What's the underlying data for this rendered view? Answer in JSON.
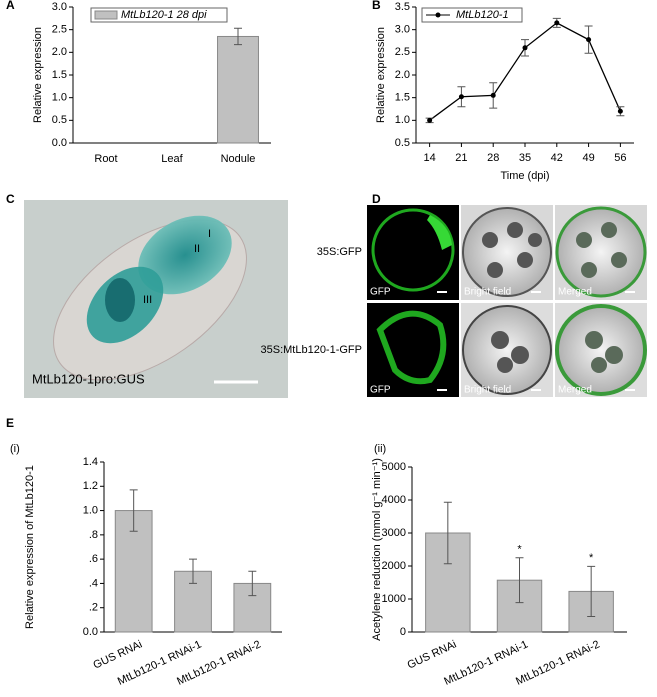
{
  "chart_data": [
    {
      "type": "bar",
      "panel": "A",
      "categories": [
        "Root",
        "Leaf",
        "Nodule"
      ],
      "ylabel": "Relative expression",
      "series": [
        {
          "name": "MtLb120-1 28 dpi",
          "color": "#c0c0c0",
          "values": [
            0,
            0,
            2.35
          ],
          "errors": [
            0,
            0,
            0.18
          ]
        }
      ],
      "ylim": [
        0,
        3
      ],
      "yticks": [
        {
          "value": 0,
          "label": "0.0"
        },
        0.5,
        {
          "value": 1,
          "label": "1.0"
        },
        1.5,
        {
          "value": 2,
          "label": "2.0"
        },
        2.5,
        {
          "value": 3,
          "label": "3.0"
        }
      ],
      "legend": "top-left"
    },
    {
      "type": "line",
      "panel": "B",
      "x": [
        14,
        21,
        28,
        35,
        42,
        49,
        56
      ],
      "xlabel": "Time (dpi)",
      "ylabel": "Relative expression",
      "series": [
        {
          "name": "MtLb120-1",
          "color": "#000000",
          "values": [
            1.0,
            1.52,
            1.55,
            2.6,
            3.15,
            2.78,
            1.2
          ],
          "errors": [
            0.05,
            0.22,
            0.28,
            0.18,
            0.1,
            0.3,
            0.1
          ]
        }
      ],
      "xlim": [
        11,
        59
      ],
      "xticks": [
        14,
        21,
        28,
        35,
        42,
        49,
        56
      ],
      "ylim": [
        0.5,
        3.5
      ],
      "yticks": [
        0.5,
        {
          "value": 1,
          "label": "1.0"
        },
        1.5,
        {
          "value": 2,
          "label": "2.0"
        },
        2.5,
        {
          "value": 3,
          "label": "3.0"
        },
        3.5
      ],
      "legend": "top-left"
    },
    {
      "type": "bar",
      "panel": "(i)",
      "categories": [
        "GUS RNAi",
        "MtLb120-1 RNAi-1",
        "MtLb120-1 RNAi-2"
      ],
      "ylabel": "Relative expression of MtLb120-1",
      "series": [
        {
          "color": "#c0c0c0",
          "values": [
            1.0,
            0.5,
            0.4
          ],
          "errors": [
            0.17,
            0.1,
            0.1
          ]
        }
      ],
      "ylim": [
        0,
        1.4
      ],
      "yticks": [
        {
          "value": 0,
          "label": "0.0"
        },
        {
          "value": 0.2,
          "label": ".2"
        },
        {
          "value": 0.4,
          "label": ".4"
        },
        {
          "value": 0.6,
          "label": ".6"
        },
        {
          "value": 0.8,
          "label": ".8"
        },
        {
          "value": 1,
          "label": "1.0"
        },
        1.2,
        1.4
      ]
    },
    {
      "type": "bar",
      "panel": "(ii)",
      "categories": [
        "GUS RNAi",
        "MtLb120-1 RNAi-1",
        "MtLb120-1 RNAi-2"
      ],
      "ylabel": "Acetylene reduction (mmol g⁻¹ min⁻¹)",
      "series": [
        {
          "color": "#c0c0c0",
          "values": [
            3000,
            1570,
            1230
          ],
          "errors": [
            930,
            680,
            760
          ]
        }
      ],
      "significance": [
        null,
        "*",
        "*"
      ],
      "ylim": [
        0,
        5000
      ],
      "yticks": [
        0,
        1000,
        2000,
        3000,
        4000,
        5000
      ]
    }
  ],
  "panel_E": "E",
  "images": [
    {
      "panel": "C",
      "labels": [
        "I",
        "II",
        "III"
      ],
      "caption": "MtLb120-1pro:GUS"
    },
    {
      "panel": "D",
      "rows": [
        "35S:GFP",
        "35S:MtLb120-1-GFP"
      ],
      "columns": [
        "GFP",
        "Bright field",
        "Merged"
      ]
    }
  ]
}
